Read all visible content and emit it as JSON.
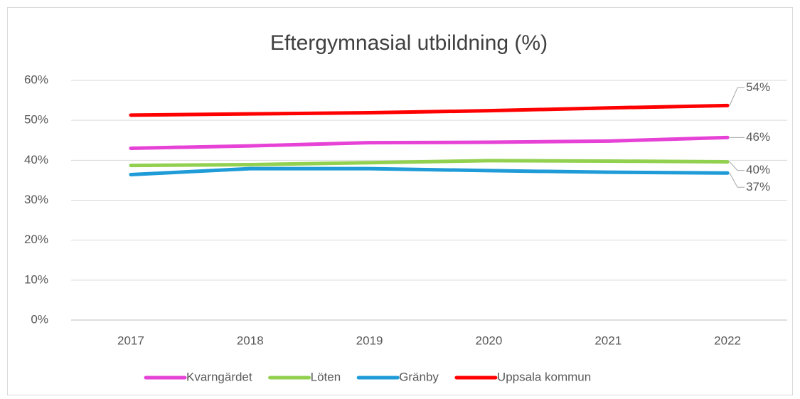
{
  "chart_data": {
    "type": "line",
    "title": "Eftergymnasial utbildning (%)",
    "categories": [
      "2017",
      "2018",
      "2019",
      "2020",
      "2021",
      "2022"
    ],
    "series": [
      {
        "name": "Kvarngärdet",
        "color": "#e642d6",
        "values": [
          43.0,
          43.6,
          44.4,
          44.5,
          44.8,
          45.7
        ],
        "value_labels": [
          null,
          null,
          null,
          null,
          null,
          "46%"
        ]
      },
      {
        "name": "Löten",
        "color": "#92d050",
        "values": [
          38.7,
          38.9,
          39.4,
          39.9,
          39.8,
          39.6
        ],
        "value_labels": [
          null,
          null,
          null,
          null,
          null,
          "40%"
        ]
      },
      {
        "name": "Gränby",
        "color": "#1f9bd7",
        "values": [
          36.4,
          37.9,
          37.9,
          37.4,
          37.0,
          36.8
        ],
        "value_labels": [
          null,
          null,
          null,
          null,
          null,
          "37%"
        ]
      },
      {
        "name": "Uppsala kommun",
        "color": "#ff0000",
        "values": [
          51.3,
          51.6,
          51.9,
          52.4,
          53.1,
          53.7
        ],
        "value_labels": [
          null,
          null,
          null,
          null,
          null,
          "54%"
        ]
      }
    ],
    "ylim": [
      0,
      60
    ],
    "yticks": [
      {
        "value": 0,
        "label": "0%"
      },
      {
        "value": 10,
        "label": "10%"
      },
      {
        "value": 20,
        "label": "20%"
      },
      {
        "value": 30,
        "label": "30%"
      },
      {
        "value": 40,
        "label": "40%"
      },
      {
        "value": 50,
        "label": "50%"
      },
      {
        "value": 60,
        "label": "60%"
      }
    ],
    "grid": true
  }
}
